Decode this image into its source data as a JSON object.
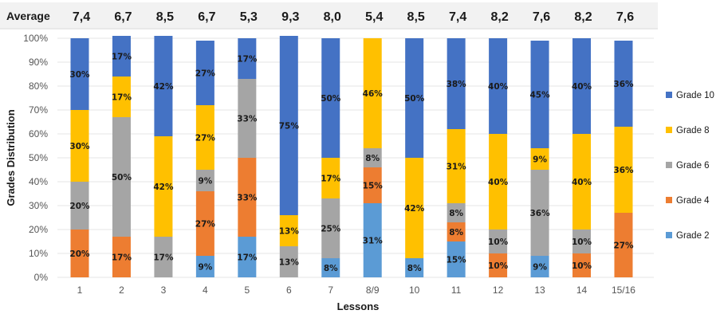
{
  "chart_data": {
    "type": "bar",
    "stacked": true,
    "percent": true,
    "xlabel": "Lessons",
    "ylabel": "Grades Distribution",
    "average_label": "Average",
    "ylim": [
      0,
      100
    ],
    "yticks": [
      "0%",
      "10%",
      "20%",
      "30%",
      "40%",
      "50%",
      "60%",
      "70%",
      "80%",
      "90%",
      "100%"
    ],
    "grid": true,
    "legend_position": "right",
    "categories": [
      "1",
      "2",
      "3",
      "4",
      "5",
      "6",
      "7",
      "8/9",
      "10",
      "11",
      "12",
      "13",
      "14",
      "15/16"
    ],
    "averages": [
      "7,4",
      "6,7",
      "8,5",
      "6,7",
      "5,3",
      "9,3",
      "8,0",
      "5,4",
      "8,5",
      "7,4",
      "8,2",
      "7,6",
      "8,2",
      "7,6"
    ],
    "series": [
      {
        "name": "Grade 2",
        "color": "#5b9bd5",
        "values": [
          0,
          0,
          0,
          9,
          17,
          0,
          8,
          31,
          8,
          15,
          0,
          9,
          0,
          0
        ]
      },
      {
        "name": "Grade 4",
        "color": "#ed7d31",
        "values": [
          20,
          17,
          0,
          27,
          33,
          0,
          0,
          15,
          0,
          8,
          10,
          0,
          10,
          27
        ]
      },
      {
        "name": "Grade 6",
        "color": "#a5a5a5",
        "values": [
          20,
          50,
          17,
          9,
          33,
          13,
          25,
          8,
          0,
          8,
          10,
          36,
          10,
          0
        ]
      },
      {
        "name": "Grade 8",
        "color": "#ffc000",
        "values": [
          30,
          17,
          42,
          27,
          0,
          13,
          17,
          46,
          42,
          31,
          40,
          9,
          40,
          36
        ]
      },
      {
        "name": "Grade 10",
        "color": "#4472c4",
        "values": [
          30,
          17,
          42,
          27,
          17,
          75,
          50,
          0,
          50,
          38,
          40,
          45,
          40,
          36
        ]
      }
    ],
    "legend_order": [
      "Grade 10",
      "Grade 8",
      "Grade 6",
      "Grade 4",
      "Grade 2"
    ]
  }
}
